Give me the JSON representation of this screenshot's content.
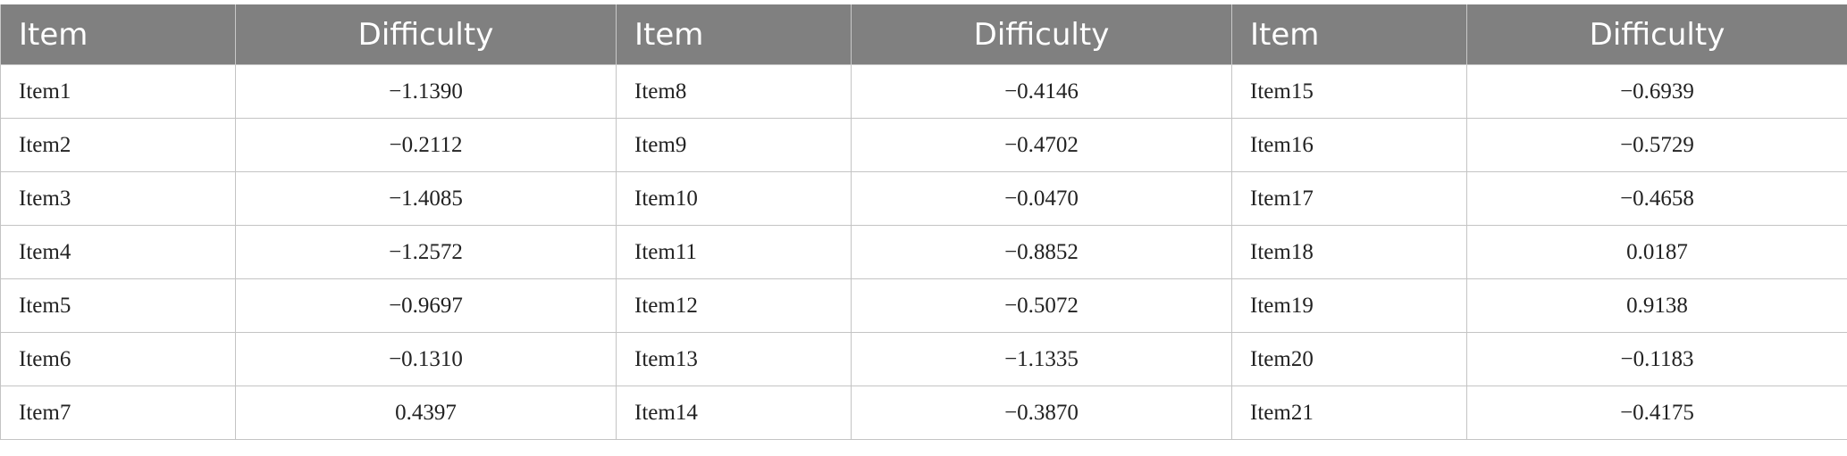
{
  "table": {
    "headers": [
      "Item",
      "Difficulty",
      "Item",
      "Difficulty",
      "Item",
      "Difficulty"
    ],
    "rows": [
      [
        {
          "item": "Item1",
          "difficulty": "−1.1390"
        },
        {
          "item": "Item8",
          "difficulty": "−0.4146"
        },
        {
          "item": "Item15",
          "difficulty": "−0.6939"
        }
      ],
      [
        {
          "item": "Item2",
          "difficulty": "−0.2112"
        },
        {
          "item": "Item9",
          "difficulty": "−0.4702"
        },
        {
          "item": "Item16",
          "difficulty": "−0.5729"
        }
      ],
      [
        {
          "item": "Item3",
          "difficulty": "−1.4085"
        },
        {
          "item": "Item10",
          "difficulty": "−0.0470"
        },
        {
          "item": "Item17",
          "difficulty": "−0.4658"
        }
      ],
      [
        {
          "item": "Item4",
          "difficulty": "−1.2572"
        },
        {
          "item": "Item11",
          "difficulty": "−0.8852"
        },
        {
          "item": "Item18",
          "difficulty": "0.0187"
        }
      ],
      [
        {
          "item": "Item5",
          "difficulty": "−0.9697"
        },
        {
          "item": "Item12",
          "difficulty": "−0.5072"
        },
        {
          "item": "Item19",
          "difficulty": "0.9138"
        }
      ],
      [
        {
          "item": "Item6",
          "difficulty": "−0.1310"
        },
        {
          "item": "Item13",
          "difficulty": "−1.1335"
        },
        {
          "item": "Item20",
          "difficulty": "−0.1183"
        }
      ],
      [
        {
          "item": "Item7",
          "difficulty": "0.4397"
        },
        {
          "item": "Item14",
          "difficulty": "−0.3870"
        },
        {
          "item": "Item21",
          "difficulty": "−0.4175"
        }
      ]
    ]
  },
  "colors": {
    "header_background": "#808080",
    "header_text": "#ffffff",
    "grid_line": "#c4c4c4"
  }
}
